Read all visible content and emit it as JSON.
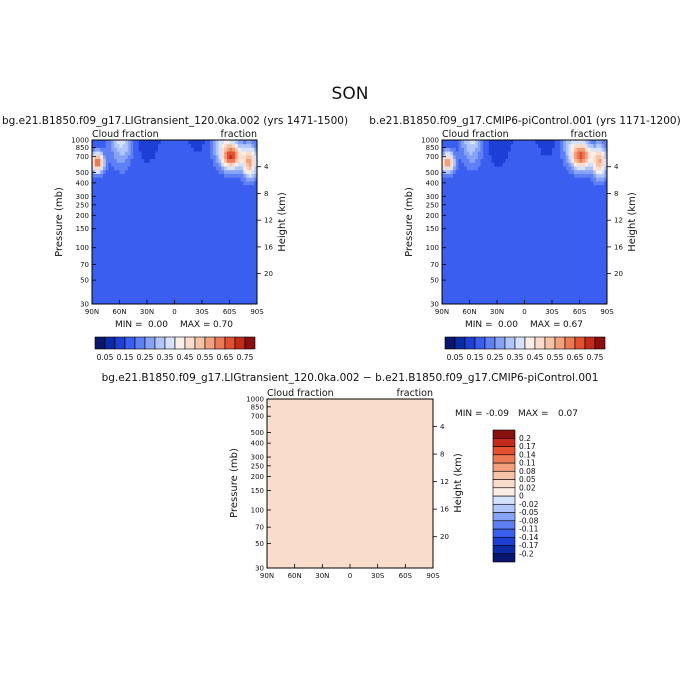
{
  "season": "SON",
  "colors": {
    "ramp": [
      "#0a1570",
      "#0b2aa6",
      "#1e3fd6",
      "#3a5ef0",
      "#5f80f5",
      "#86a3f7",
      "#b0c6fa",
      "#d6e1fc",
      "#fbeee6",
      "#fadccc",
      "#f7c3a8",
      "#f2a07e",
      "#ec7a55",
      "#e2502f",
      "#c42a1a",
      "#8a1010"
    ],
    "diff_ramp": [
      "#0a1570",
      "#0b2aa6",
      "#1e3fd6",
      "#3a5ef0",
      "#5f80f5",
      "#86a3f7",
      "#b0c6fa",
      "#d6e1fc",
      "#fbeee6",
      "#fadccc",
      "#f7c3a8",
      "#f2a07e",
      "#ec7a55",
      "#e2502f",
      "#c42a1a",
      "#8a1010"
    ]
  },
  "chart_data": [
    {
      "type": "heatmap",
      "title": "bg.e21.B1850.f09_g17.LIGtransient_120.0ka.002 (yrs 1471-1500)",
      "left_label": "Cloud fraction",
      "right_label": "fraction",
      "ylabel": "Pressure (mb)",
      "ylabel_right": "Height (km)",
      "x_ticks": [
        "90N",
        "60N",
        "30N",
        "0",
        "30S",
        "60S",
        "90S"
      ],
      "y_ticks": [
        "1000",
        "850",
        "700",
        "500",
        "400",
        "300",
        "250",
        "200",
        "150",
        "100",
        "70",
        "50",
        "30"
      ],
      "height_ticks": [
        "4",
        "8",
        "12",
        "16",
        "20"
      ],
      "min_label": "MIN =",
      "min_value": "0.00",
      "max_label": "MAX =",
      "max_value": "0.70",
      "colorbar_labels": [
        "0.05",
        "0.15",
        "0.25",
        "0.35",
        "0.45",
        "0.55",
        "0.65",
        "0.75"
      ]
    },
    {
      "type": "heatmap",
      "title": "b.e21.B1850.f09_g17.CMIP6-piControl.001 (yrs 1171-1200)",
      "left_label": "Cloud fraction",
      "right_label": "fraction",
      "ylabel": "Pressure (mb)",
      "ylabel_right": "Height (km)",
      "x_ticks": [
        "90N",
        "60N",
        "30N",
        "0",
        "30S",
        "60S",
        "90S"
      ],
      "y_ticks": [
        "1000",
        "850",
        "700",
        "500",
        "400",
        "300",
        "250",
        "200",
        "150",
        "100",
        "70",
        "50",
        "30"
      ],
      "height_ticks": [
        "4",
        "8",
        "12",
        "16",
        "20"
      ],
      "min_label": "MIN =",
      "min_value": "0.00",
      "max_label": "MAX =",
      "max_value": "0.67",
      "colorbar_labels": [
        "0.05",
        "0.15",
        "0.25",
        "0.35",
        "0.45",
        "0.55",
        "0.65",
        "0.75"
      ]
    },
    {
      "type": "heatmap",
      "title": "bg.e21.B1850.f09_g17.LIGtransient_120.0ka.002 − b.e21.B1850.f09_g17.CMIP6-piControl.001",
      "left_label": "Cloud fraction",
      "right_label": "fraction",
      "ylabel": "Pressure (mb)",
      "ylabel_right": "Height (km)",
      "x_ticks": [
        "90N",
        "60N",
        "30N",
        "0",
        "30S",
        "60S",
        "90S"
      ],
      "y_ticks": [
        "1000",
        "850",
        "700",
        "500",
        "400",
        "300",
        "250",
        "200",
        "150",
        "100",
        "70",
        "50",
        "30"
      ],
      "height_ticks": [
        "4",
        "8",
        "12",
        "16",
        "20"
      ],
      "min_label": "MIN =",
      "min_value": "-0.09",
      "max_label": "MAX =",
      "max_value": "0.07",
      "colorbar_labels": [
        "0.2",
        "0.17",
        "0.14",
        "0.11",
        "0.08",
        "0.05",
        "0.02",
        "0",
        "-0.02",
        "-0.05",
        "-0.08",
        "-0.11",
        "-0.14",
        "-0.17",
        "-0.2"
      ]
    }
  ]
}
